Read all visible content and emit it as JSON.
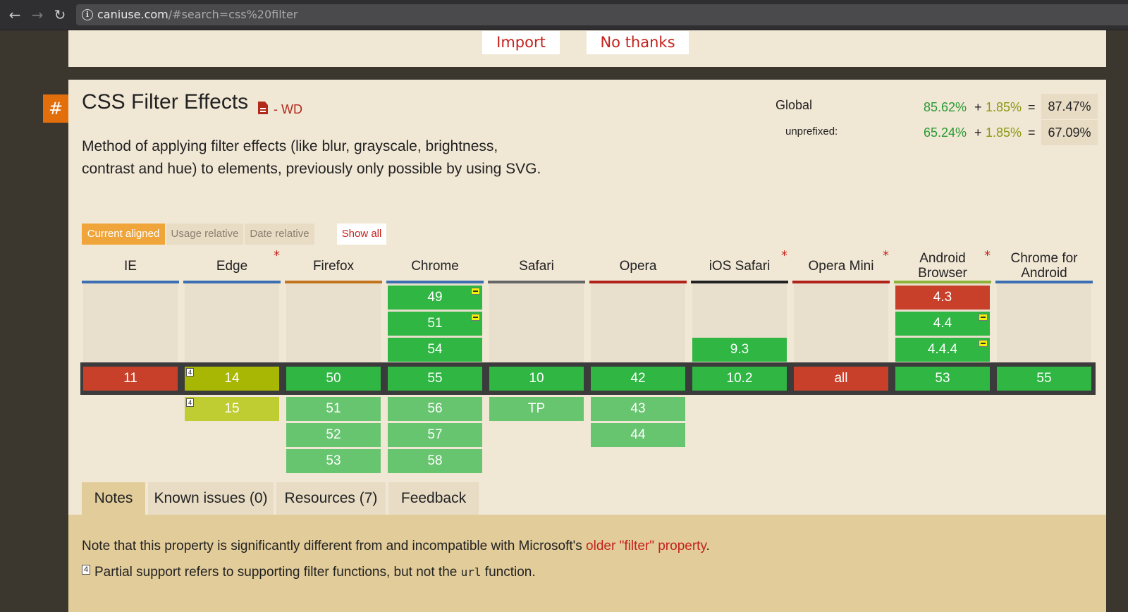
{
  "browser": {
    "url_host": "caniuse.com",
    "url_path": "/#search=css%20filter"
  },
  "banner": {
    "import_label": "Import",
    "no_thanks_label": "No thanks"
  },
  "feature": {
    "hash": "#",
    "title": "CSS Filter Effects",
    "status": "- WD",
    "description": "Method of applying filter effects (like blur, grayscale, brightness, contrast and hue) to elements, previously only possible by using SVG."
  },
  "stats": {
    "global_label": "Global",
    "unprefixed_label": "unprefixed:",
    "global_full": "85.62%",
    "global_partial": "1.85%",
    "global_total": "87.47%",
    "unprefixed_full": "65.24%",
    "unprefixed_partial": "1.85%",
    "unprefixed_total": "67.09%",
    "plus": "+",
    "equals": "="
  },
  "view_toggles": {
    "current_aligned": "Current aligned",
    "usage_relative": "Usage relative",
    "date_relative": "Date relative",
    "show_all": "Show all"
  },
  "browsers": [
    {
      "name": "IE",
      "star": false,
      "color": "#3b6fb1"
    },
    {
      "name": "Edge",
      "star": true,
      "color": "#3b6fb1"
    },
    {
      "name": "Firefox",
      "star": false,
      "color": "#c4741f"
    },
    {
      "name": "Chrome",
      "star": false,
      "color": "#3b6fb1"
    },
    {
      "name": "Safari",
      "star": false,
      "color": "#666666"
    },
    {
      "name": "Opera",
      "star": false,
      "color": "#b0221a"
    },
    {
      "name": "iOS Safari",
      "star": true,
      "color": "#222222"
    },
    {
      "name": "Opera Mini",
      "star": true,
      "color": "#b0221a"
    },
    {
      "name": "Android Browser",
      "star": true,
      "color": "#8db339"
    },
    {
      "name": "Chrome for Android",
      "star": false,
      "color": "#3b6fb1"
    }
  ],
  "versions": {
    "chrome_past": [
      "49",
      "51",
      "54"
    ],
    "ios_past": [
      "9.3"
    ],
    "android_past": [
      "4.3",
      "4.4",
      "4.4.4"
    ],
    "current": [
      "11",
      "14",
      "50",
      "55",
      "10",
      "42",
      "10.2",
      "all",
      "53",
      "55"
    ],
    "edge_future": [
      "15"
    ],
    "firefox_future": [
      "51",
      "52",
      "53"
    ],
    "chrome_future": [
      "56",
      "57",
      "58"
    ],
    "safari_future": [
      "TP"
    ],
    "opera_future": [
      "43",
      "44"
    ],
    "note_number": "4"
  },
  "tabs": {
    "notes": "Notes",
    "known_issues": "Known issues (0)",
    "resources": "Resources (7)",
    "feedback": "Feedback"
  },
  "notes": {
    "line1_prefix": "Note that this property is significantly different from and incompatible with Microsoft's ",
    "line1_link": "older \"filter\" property",
    "line1_suffix": ".",
    "line2_marker": "4",
    "line2_prefix": "Partial support refers to supporting filter functions, but not the ",
    "line2_code": "url",
    "line2_suffix": " function."
  },
  "colors": {
    "supported": "#2fb643",
    "supported_future": "#67c56f",
    "unsupported": "#c8402a",
    "partial": "#a8b704",
    "accent": "#e36e0c",
    "link": "#c4221b"
  }
}
